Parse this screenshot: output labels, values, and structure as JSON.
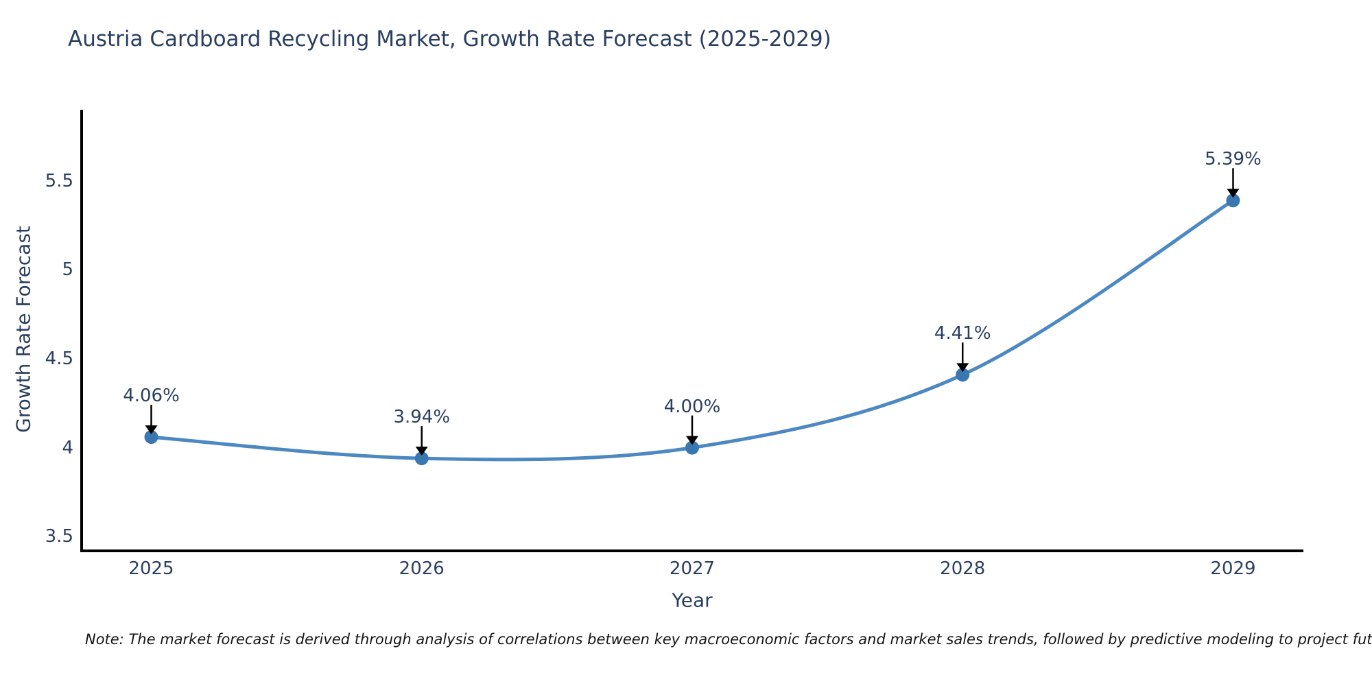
{
  "title": "Austria Cardboard Recycling Market, Growth Rate Forecast (2025-2029)",
  "note": "Note: The market forecast is derived through analysis of correlations between key macroeconomic factors and market sales trends, followed by predictive modeling to project future sales",
  "chart_data": {
    "type": "line",
    "title": "Austria Cardboard Recycling Market, Growth Rate Forecast (2025-2029)",
    "xlabel": "Year",
    "ylabel": "Growth Rate Forecast",
    "x": [
      2025,
      2026,
      2027,
      2028,
      2029
    ],
    "series": [
      {
        "name": "Growth Rate Forecast",
        "values": [
          4.06,
          3.94,
          4.0,
          4.41,
          5.39
        ]
      }
    ],
    "point_labels": [
      "4.06%",
      "3.94%",
      "4.00%",
      "4.41%",
      "5.39%"
    ],
    "x_tick_labels": [
      "2025",
      "2026",
      "2027",
      "2028",
      "2029"
    ],
    "x_tick_values": [
      2025,
      2026,
      2027,
      2028,
      2029
    ],
    "y_tick_labels": [
      "3.5",
      "4",
      "4.5",
      "5",
      "5.5"
    ],
    "y_tick_values": [
      3.5,
      4,
      4.5,
      5,
      5.5
    ],
    "xlim": [
      2024.74,
      2029.26
    ],
    "ylim": [
      3.42,
      5.9
    ],
    "grid": false,
    "line_shape": "spline",
    "legend": "none",
    "colors": {
      "line": "#4c88c2",
      "marker": "#3a76b0",
      "axis": "#000000",
      "text": "#2a3f5f",
      "annotation_arrow": "#000000",
      "background": "#ffffff"
    }
  }
}
